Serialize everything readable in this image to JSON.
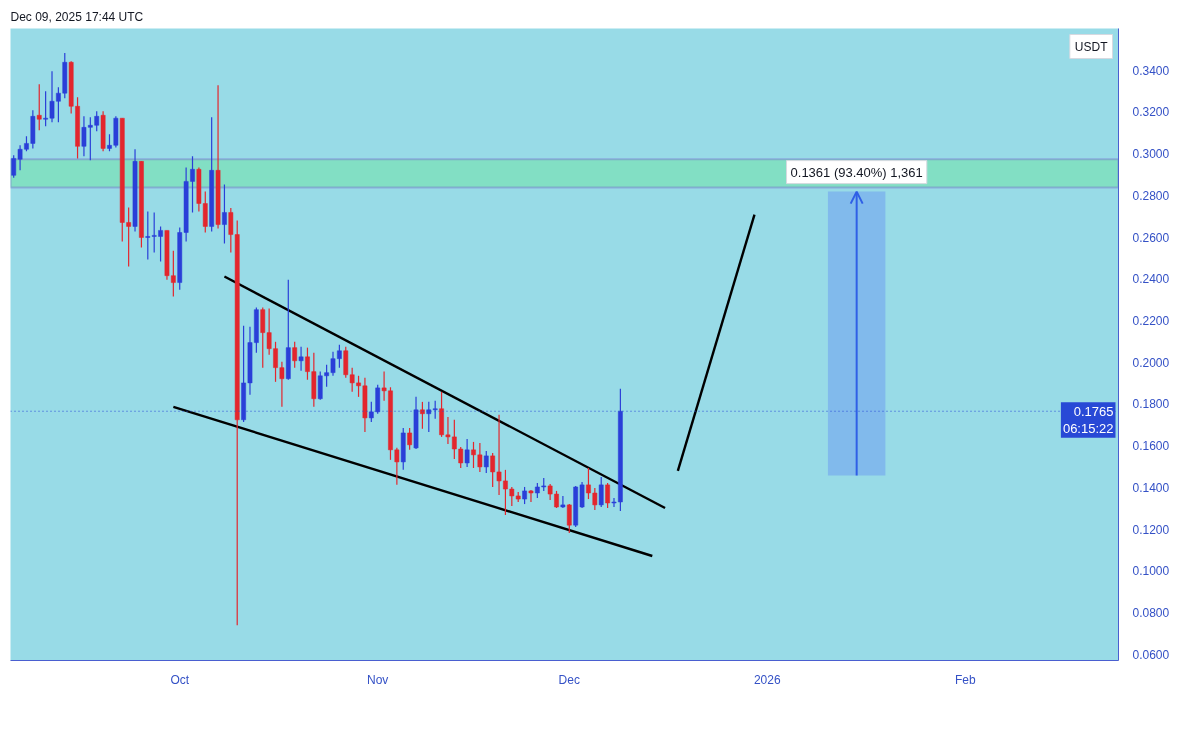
{
  "chart_data": {
    "type": "candlestick",
    "title": "Dec 09, 2025 17:44 UTC",
    "ylabel": "USDT",
    "x": [
      "2025-09-05",
      "2025-09-06",
      "2025-09-07",
      "2025-09-08",
      "2025-09-09",
      "2025-09-10",
      "2025-09-11",
      "2025-09-12",
      "2025-09-13",
      "2025-09-14",
      "2025-09-15",
      "2025-09-16",
      "2025-09-17",
      "2025-09-18",
      "2025-09-19",
      "2025-09-20",
      "2025-09-21",
      "2025-09-22",
      "2025-09-23",
      "2025-09-24",
      "2025-09-25",
      "2025-09-26",
      "2025-09-27",
      "2025-09-28",
      "2025-09-29",
      "2025-09-30",
      "2025-10-01",
      "2025-10-02",
      "2025-10-03",
      "2025-10-04",
      "2025-10-05",
      "2025-10-06",
      "2025-10-07",
      "2025-10-08",
      "2025-10-09",
      "2025-10-10",
      "2025-10-11",
      "2025-10-12",
      "2025-10-13",
      "2025-10-14",
      "2025-10-15",
      "2025-10-16",
      "2025-10-17",
      "2025-10-18",
      "2025-10-19",
      "2025-10-20",
      "2025-10-21",
      "2025-10-22",
      "2025-10-23",
      "2025-10-24",
      "2025-10-25",
      "2025-10-26",
      "2025-10-27",
      "2025-10-28",
      "2025-10-29",
      "2025-10-30",
      "2025-10-31",
      "2025-11-01",
      "2025-11-02",
      "2025-11-03",
      "2025-11-04",
      "2025-11-05",
      "2025-11-06",
      "2025-11-07",
      "2025-11-08",
      "2025-11-09",
      "2025-11-10",
      "2025-11-11",
      "2025-11-12",
      "2025-11-13",
      "2025-11-14",
      "2025-11-15",
      "2025-11-16",
      "2025-11-17",
      "2025-11-18",
      "2025-11-19",
      "2025-11-20",
      "2025-11-21",
      "2025-11-22",
      "2025-11-23",
      "2025-11-24",
      "2025-11-25",
      "2025-11-26",
      "2025-11-27",
      "2025-11-28",
      "2025-11-29",
      "2025-11-30",
      "2025-12-01",
      "2025-12-02",
      "2025-12-03",
      "2025-12-04",
      "2025-12-05",
      "2025-12-06",
      "2025-12-07",
      "2025-12-08",
      "2025-12-09"
    ],
    "ohlc": [
      [
        0.2896,
        0.2992,
        0.2885,
        0.2977
      ],
      [
        0.2973,
        0.304,
        0.292,
        0.3021
      ],
      [
        0.3021,
        0.3083,
        0.3011,
        0.3049
      ],
      [
        0.3049,
        0.3208,
        0.3025,
        0.3179
      ],
      [
        0.3184,
        0.3333,
        0.3112,
        0.3165
      ],
      [
        0.3165,
        0.3299,
        0.3131,
        0.317
      ],
      [
        0.317,
        0.3395,
        0.315,
        0.3251
      ],
      [
        0.3251,
        0.3318,
        0.315,
        0.329
      ],
      [
        0.329,
        0.3482,
        0.3266,
        0.3438
      ],
      [
        0.3438,
        0.3443,
        0.3193,
        0.3227
      ],
      [
        0.3227,
        0.327,
        0.2977,
        0.3035
      ],
      [
        0.3035,
        0.3179,
        0.2987,
        0.3126
      ],
      [
        0.3126,
        0.3174,
        0.2968,
        0.3136
      ],
      [
        0.3136,
        0.3203,
        0.3107,
        0.3179
      ],
      [
        0.3184,
        0.3203,
        0.3011,
        0.3025
      ],
      [
        0.3025,
        0.3093,
        0.3011,
        0.304
      ],
      [
        0.304,
        0.3179,
        0.303,
        0.317
      ],
      [
        0.317,
        0.317,
        0.2579,
        0.267
      ],
      [
        0.267,
        0.2742,
        0.2459,
        0.2651
      ],
      [
        0.2651,
        0.3021,
        0.2627,
        0.2963
      ],
      [
        0.2963,
        0.2963,
        0.255,
        0.2598
      ],
      [
        0.2598,
        0.2723,
        0.2492,
        0.2603
      ],
      [
        0.2603,
        0.2718,
        0.2526,
        0.2608
      ],
      [
        0.2603,
        0.2651,
        0.2483,
        0.2632
      ],
      [
        0.2632,
        0.2632,
        0.2396,
        0.2415
      ],
      [
        0.2415,
        0.2535,
        0.2315,
        0.2382
      ],
      [
        0.2382,
        0.2646,
        0.2348,
        0.2622
      ],
      [
        0.2622,
        0.2934,
        0.2579,
        0.2867
      ],
      [
        0.2867,
        0.2987,
        0.2718,
        0.2925
      ],
      [
        0.2925,
        0.2934,
        0.2723,
        0.2761
      ],
      [
        0.2761,
        0.2819,
        0.2622,
        0.2651
      ],
      [
        0.2651,
        0.3174,
        0.2627,
        0.292
      ],
      [
        0.292,
        0.3328,
        0.2641,
        0.266
      ],
      [
        0.266,
        0.2852,
        0.2569,
        0.2718
      ],
      [
        0.2718,
        0.274,
        0.2526,
        0.2612
      ],
      [
        0.2612,
        0.268,
        0.0739,
        0.1724
      ],
      [
        0.1724,
        0.2175,
        0.1714,
        0.1901
      ],
      [
        0.1901,
        0.217,
        0.1844,
        0.2094
      ],
      [
        0.2094,
        0.2262,
        0.2046,
        0.2252
      ],
      [
        0.2252,
        0.2262,
        0.1974,
        0.2142
      ],
      [
        0.2142,
        0.2257,
        0.2036,
        0.2065
      ],
      [
        0.2065,
        0.2098,
        0.1906,
        0.1974
      ],
      [
        0.1974,
        0.2002,
        0.1786,
        0.1921
      ],
      [
        0.1921,
        0.2396,
        0.1916,
        0.207
      ],
      [
        0.207,
        0.2098,
        0.1974,
        0.2007
      ],
      [
        0.2007,
        0.2074,
        0.1959,
        0.2026
      ],
      [
        0.2026,
        0.207,
        0.1916,
        0.1955
      ],
      [
        0.1955,
        0.2046,
        0.1786,
        0.1825
      ],
      [
        0.1825,
        0.1955,
        0.182,
        0.1935
      ],
      [
        0.1935,
        0.1988,
        0.1882,
        0.195
      ],
      [
        0.195,
        0.205,
        0.1935,
        0.2017
      ],
      [
        0.2017,
        0.2084,
        0.1974,
        0.2055
      ],
      [
        0.2055,
        0.2074,
        0.1926,
        0.194
      ],
      [
        0.194,
        0.1974,
        0.1858,
        0.1901
      ],
      [
        0.1901,
        0.1935,
        0.1834,
        0.1887
      ],
      [
        0.1887,
        0.1926,
        0.1666,
        0.1733
      ],
      [
        0.1733,
        0.181,
        0.1714,
        0.1762
      ],
      [
        0.1762,
        0.1892,
        0.1753,
        0.1877
      ],
      [
        0.1877,
        0.1955,
        0.1815,
        0.1863
      ],
      [
        0.1863,
        0.188,
        0.1532,
        0.158
      ],
      [
        0.158,
        0.159,
        0.1412,
        0.1522
      ],
      [
        0.1522,
        0.1685,
        0.1484,
        0.1661
      ],
      [
        0.1661,
        0.1685,
        0.158,
        0.1604
      ],
      [
        0.1589,
        0.1834,
        0.1584,
        0.1772
      ],
      [
        0.1772,
        0.181,
        0.1681,
        0.1753
      ],
      [
        0.1753,
        0.181,
        0.1666,
        0.1772
      ],
      [
        0.1772,
        0.1815,
        0.1729,
        0.1777
      ],
      [
        0.1777,
        0.1858,
        0.1642,
        0.1652
      ],
      [
        0.1652,
        0.1738,
        0.1608,
        0.1642
      ],
      [
        0.1642,
        0.1724,
        0.1536,
        0.1584
      ],
      [
        0.1584,
        0.1594,
        0.1493,
        0.1517
      ],
      [
        0.1517,
        0.1632,
        0.1498,
        0.158
      ],
      [
        0.158,
        0.1618,
        0.1493,
        0.1556
      ],
      [
        0.1556,
        0.1613,
        0.1474,
        0.1498
      ],
      [
        0.1498,
        0.1575,
        0.1469,
        0.1551
      ],
      [
        0.1551,
        0.1565,
        0.1402,
        0.1474
      ],
      [
        0.1474,
        0.1748,
        0.1364,
        0.1431
      ],
      [
        0.1431,
        0.1484,
        0.1267,
        0.1392
      ],
      [
        0.1392,
        0.1402,
        0.1311,
        0.1359
      ],
      [
        0.1359,
        0.1378,
        0.133,
        0.1344
      ],
      [
        0.1344,
        0.1402,
        0.132,
        0.1383
      ],
      [
        0.1383,
        0.1388,
        0.133,
        0.1373
      ],
      [
        0.1373,
        0.1421,
        0.1349,
        0.1402
      ],
      [
        0.1402,
        0.1445,
        0.1383,
        0.1407
      ],
      [
        0.1407,
        0.1416,
        0.134,
        0.1368
      ],
      [
        0.1368,
        0.1383,
        0.1301,
        0.1306
      ],
      [
        0.1306,
        0.1359,
        0.1301,
        0.1316
      ],
      [
        0.1316,
        0.132,
        0.1181,
        0.1219
      ],
      [
        0.1219,
        0.1407,
        0.121,
        0.1402
      ],
      [
        0.1306,
        0.1426,
        0.1301,
        0.1412
      ],
      [
        0.1412,
        0.1493,
        0.1344,
        0.1373
      ],
      [
        0.1373,
        0.1397,
        0.1292,
        0.1316
      ],
      [
        0.1316,
        0.145,
        0.1306,
        0.1412
      ],
      [
        0.1412,
        0.1421,
        0.1301,
        0.1325
      ],
      [
        0.1325,
        0.1349,
        0.1306,
        0.133
      ],
      [
        0.133,
        0.1873,
        0.1287,
        0.1765
      ]
    ],
    "colors": [
      "#2a3fd8",
      "#2a3fd8",
      "#2a3fd8",
      "#2a3fd8",
      "#e3262d",
      "#2a3fd8",
      "#2a3fd8",
      "#2a3fd8",
      "#2a3fd8",
      "#e3262d",
      "#e3262d",
      "#2a3fd8",
      "#2a3fd8",
      "#2a3fd8",
      "#e3262d",
      "#2a3fd8",
      "#2a3fd8",
      "#e3262d",
      "#e3262d",
      "#2a3fd8",
      "#e3262d",
      "#2a3fd8",
      "#2a3fd8",
      "#2a3fd8",
      "#e3262d",
      "#e3262d",
      "#2a3fd8",
      "#2a3fd8",
      "#2a3fd8",
      "#e3262d",
      "#e3262d",
      "#2a3fd8",
      "#e3262d",
      "#2a3fd8",
      "#e3262d",
      "#e3262d",
      "#2a3fd8",
      "#2a3fd8",
      "#2a3fd8",
      "#e3262d",
      "#e3262d",
      "#e3262d",
      "#e3262d",
      "#2a3fd8",
      "#e3262d",
      "#2a3fd8",
      "#e3262d",
      "#e3262d",
      "#2a3fd8",
      "#2a3fd8",
      "#2a3fd8",
      "#2a3fd8",
      "#e3262d",
      "#e3262d",
      "#e3262d",
      "#e3262d",
      "#2a3fd8",
      "#2a3fd8",
      "#e3262d",
      "#e3262d",
      "#e3262d",
      "#2a3fd8",
      "#e3262d",
      "#2a3fd8",
      "#e3262d",
      "#2a3fd8",
      "#2a3fd8",
      "#e3262d",
      "#e3262d",
      "#e3262d",
      "#e3262d",
      "#2a3fd8",
      "#e3262d",
      "#e3262d",
      "#2a3fd8",
      "#e3262d",
      "#e3262d",
      "#e3262d",
      "#e3262d",
      "#e3262d",
      "#2a3fd8",
      "#e3262d",
      "#2a3fd8",
      "#2a3fd8",
      "#e3262d",
      "#e3262d",
      "#2a3fd8",
      "#e3262d",
      "#2a3fd8",
      "#2a3fd8",
      "#e3262d",
      "#e3262d",
      "#2a3fd8",
      "#e3262d",
      "#2a3fd8",
      "#2a3fd8"
    ],
    "xlim": [
      "2025-09-04T12:00",
      "2026-02-25"
    ],
    "ylim": [
      0.057,
      0.36
    ],
    "xticks": [
      {
        "value": "2025-10-01",
        "label": "Oct"
      },
      {
        "value": "2025-11-01",
        "label": "Nov"
      },
      {
        "value": "2025-12-01",
        "label": "Dec"
      },
      {
        "value": "2026-01-01",
        "label": "2026"
      },
      {
        "value": "2026-02-01",
        "label": "Feb"
      }
    ],
    "yticks": [
      {
        "value": 0.06,
        "label": "0.0600"
      },
      {
        "value": 0.08,
        "label": "0.0800"
      },
      {
        "value": 0.1,
        "label": "0.1000"
      },
      {
        "value": 0.12,
        "label": "0.1200"
      },
      {
        "value": 0.14,
        "label": "0.1400"
      },
      {
        "value": 0.16,
        "label": "0.1600"
      },
      {
        "value": 0.18,
        "label": "0.1800"
      },
      {
        "value": 0.2,
        "label": "0.2000"
      },
      {
        "value": 0.22,
        "label": "0.2200"
      },
      {
        "value": 0.24,
        "label": "0.2400"
      },
      {
        "value": 0.26,
        "label": "0.2600"
      },
      {
        "value": 0.28,
        "label": "0.2800"
      },
      {
        "value": 0.3,
        "label": "0.3000"
      },
      {
        "value": 0.32,
        "label": "0.3200"
      },
      {
        "value": 0.34,
        "label": "0.3400"
      }
    ],
    "series": [
      {
        "type": "bar",
        "x": [
          "2026-01-15"
        ],
        "base": [
          0.1457
        ],
        "values": [
          0.1361
        ],
        "color": "#6f9ff0"
      },
      {
        "type": "line",
        "x": [
          "2025-10-08",
          "2025-12-16"
        ],
        "values": [
          0.2411,
          0.1301
        ],
        "color": "#000000"
      },
      {
        "type": "line",
        "x": [
          "2025-09-30",
          "2025-12-14"
        ],
        "values": [
          0.1786,
          0.1071
        ],
        "color": "#000000"
      },
      {
        "type": "line",
        "x": [
          "2025-12-18",
          "2025-12-30"
        ],
        "values": [
          0.1479,
          0.2708
        ],
        "color": "#000000"
      }
    ],
    "bands": [
      {
        "axis": "y",
        "from": 0.2838,
        "to": 0.2973,
        "color": "#80dfc0"
      }
    ],
    "ref_lines": [
      {
        "axis": "y",
        "value": 0.1765,
        "label": "0.1765\n06:15:22",
        "color": "#2849d6",
        "line_style": "dotted"
      }
    ],
    "annotations": [
      {
        "text": "0.1361 (93.40%) 1,361",
        "x": "2026-01-15",
        "y": 0.2818
      }
    ]
  }
}
